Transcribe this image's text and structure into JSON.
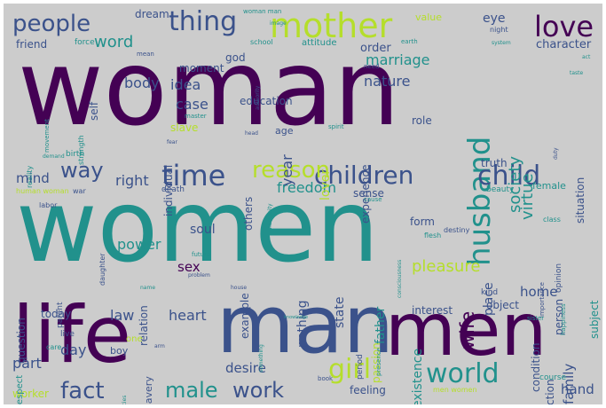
{
  "palette": {
    "background": "#cccccc",
    "purple": "#440154",
    "indigo": "#3b528b",
    "teal": "#21918c",
    "green": "#5ec962",
    "lime": "#b5de2b",
    "yellow": "#fde725",
    "slate": "#31688e"
  },
  "words": [
    {
      "text": "woman",
      "weight": 100
    },
    {
      "text": "women",
      "weight": 98
    },
    {
      "text": "life",
      "weight": 62
    },
    {
      "text": "man",
      "weight": 60
    },
    {
      "text": "men",
      "weight": 52
    },
    {
      "text": "mother",
      "weight": 34
    },
    {
      "text": "husband",
      "weight": 30
    },
    {
      "text": "love",
      "weight": 28
    },
    {
      "text": "thing",
      "weight": 26
    },
    {
      "text": "people",
      "weight": 24
    },
    {
      "text": "time",
      "weight": 26
    },
    {
      "text": "children",
      "weight": 26
    },
    {
      "text": "child",
      "weight": 26
    },
    {
      "text": "reason",
      "weight": 24
    },
    {
      "text": "world",
      "weight": 26
    },
    {
      "text": "girl",
      "weight": 28
    },
    {
      "text": "male",
      "weight": 22
    },
    {
      "text": "work",
      "weight": 22
    },
    {
      "text": "fact",
      "weight": 22
    },
    {
      "text": "way",
      "weight": 20
    },
    {
      "text": "wife",
      "weight": 18
    },
    {
      "text": "word",
      "weight": 16
    },
    {
      "text": "body",
      "weight": 15
    },
    {
      "text": "idea",
      "weight": 15
    },
    {
      "text": "case",
      "weight": 15
    },
    {
      "text": "nature",
      "weight": 16
    },
    {
      "text": "marriage",
      "weight": 15
    },
    {
      "text": "society",
      "weight": 15
    },
    {
      "text": "virtue",
      "weight": 15
    },
    {
      "text": "freedom",
      "weight": 15
    },
    {
      "text": "right",
      "weight": 15
    },
    {
      "text": "mind",
      "weight": 14
    },
    {
      "text": "lover",
      "weight": 13
    },
    {
      "text": "year",
      "weight": 14
    },
    {
      "text": "pleasure",
      "weight": 16
    },
    {
      "text": "power",
      "weight": 15
    },
    {
      "text": "law",
      "weight": 15
    },
    {
      "text": "heart",
      "weight": 15
    },
    {
      "text": "day",
      "weight": 15
    },
    {
      "text": "part",
      "weight": 15
    },
    {
      "text": "desire",
      "weight": 14
    },
    {
      "text": "home",
      "weight": 15
    },
    {
      "text": "family",
      "weight": 15
    },
    {
      "text": "hand",
      "weight": 15
    },
    {
      "text": "sex",
      "weight": 15
    },
    {
      "text": "soul",
      "weight": 14
    },
    {
      "text": "state",
      "weight": 14
    },
    {
      "text": "place",
      "weight": 14
    },
    {
      "text": "father",
      "weight": 14
    },
    {
      "text": "existence",
      "weight": 14
    },
    {
      "text": "nothing",
      "weight": 14
    },
    {
      "text": "eye",
      "weight": 14
    },
    {
      "text": "character",
      "weight": 13
    },
    {
      "text": "order",
      "weight": 13
    },
    {
      "text": "god",
      "weight": 12
    },
    {
      "text": "moment",
      "weight": 12
    },
    {
      "text": "friend",
      "weight": 12
    },
    {
      "text": "self",
      "weight": 12
    },
    {
      "text": "dream",
      "weight": 12
    },
    {
      "text": "value",
      "weight": 11
    },
    {
      "text": "education",
      "weight": 12
    },
    {
      "text": "slave",
      "weight": 12
    },
    {
      "text": "others",
      "weight": 12
    },
    {
      "text": "role",
      "weight": 12
    },
    {
      "text": "experience",
      "weight": 12
    },
    {
      "text": "individual",
      "weight": 12
    },
    {
      "text": "truth",
      "weight": 12
    },
    {
      "text": "female",
      "weight": 11
    },
    {
      "text": "situation",
      "weight": 12
    },
    {
      "text": "sense",
      "weight": 12
    },
    {
      "text": "age",
      "weight": 11
    },
    {
      "text": "form",
      "weight": 12
    },
    {
      "text": "person",
      "weight": 12
    },
    {
      "text": "relation",
      "weight": 12
    },
    {
      "text": "example",
      "weight": 12
    },
    {
      "text": "question",
      "weight": 12
    },
    {
      "text": "today",
      "weight": 12
    },
    {
      "text": "interest",
      "weight": 12
    },
    {
      "text": "object",
      "weight": 12
    },
    {
      "text": "passion",
      "weight": 12
    },
    {
      "text": "condition",
      "weight": 12
    },
    {
      "text": "affection",
      "weight": 12
    },
    {
      "text": "subject",
      "weight": 12
    },
    {
      "text": "feeling",
      "weight": 12
    },
    {
      "text": "worker",
      "weight": 12
    },
    {
      "text": "boy",
      "weight": 11
    },
    {
      "text": "live",
      "weight": 9
    },
    {
      "text": "respect",
      "weight": 10
    },
    {
      "text": "slavery",
      "weight": 11
    },
    {
      "text": "birth",
      "weight": 9
    },
    {
      "text": "strength",
      "weight": 8
    },
    {
      "text": "movement",
      "weight": 7
    },
    {
      "text": "death",
      "weight": 9
    },
    {
      "text": "labor",
      "weight": 8
    },
    {
      "text": "daughter",
      "weight": 8
    },
    {
      "text": "beauty",
      "weight": 9
    },
    {
      "text": "opinion",
      "weight": 9
    },
    {
      "text": "happiness",
      "weight": 7
    },
    {
      "text": "importance",
      "weight": 7
    },
    {
      "text": "class",
      "weight": 8
    },
    {
      "text": "destiny",
      "weight": 8
    },
    {
      "text": "kind",
      "weight": 9
    },
    {
      "text": "course",
      "weight": 9
    },
    {
      "text": "sister",
      "weight": 7
    },
    {
      "text": "book",
      "weight": 7
    },
    {
      "text": "period",
      "weight": 9
    },
    {
      "text": "men women",
      "weight": 8
    },
    {
      "text": "woman man",
      "weight": 7
    },
    {
      "text": "human woman",
      "weight": 8
    },
    {
      "text": "war",
      "weight": 8
    },
    {
      "text": "mean",
      "weight": 7
    },
    {
      "text": "master",
      "weight": 7
    },
    {
      "text": "school",
      "weight": 8
    },
    {
      "text": "attitude",
      "weight": 10
    },
    {
      "text": "force",
      "weight": 9
    },
    {
      "text": "earth",
      "weight": 7
    },
    {
      "text": "night",
      "weight": 8
    },
    {
      "text": "system",
      "weight": 6
    },
    {
      "text": "need",
      "weight": 7
    },
    {
      "text": "image",
      "weight": 6
    },
    {
      "text": "authority",
      "weight": 6
    },
    {
      "text": "act",
      "weight": 6
    },
    {
      "text": "taste",
      "weight": 6
    },
    {
      "text": "duty",
      "weight": 6
    },
    {
      "text": "spirit",
      "weight": 7
    },
    {
      "text": "head",
      "weight": 6
    },
    {
      "text": "reality",
      "weight": 8
    },
    {
      "text": "demand",
      "weight": 6
    },
    {
      "text": "fear",
      "weight": 6
    },
    {
      "text": "future",
      "weight": 7
    },
    {
      "text": "problem",
      "weight": 6
    },
    {
      "text": "humanity",
      "weight": 6
    },
    {
      "text": "flesh",
      "weight": 8
    },
    {
      "text": "cause",
      "weight": 7
    },
    {
      "text": "name",
      "weight": 6
    },
    {
      "text": "house",
      "weight": 6
    },
    {
      "text": "parent",
      "weight": 9
    },
    {
      "text": "knowledge",
      "weight": 5
    },
    {
      "text": "care",
      "weight": 8
    },
    {
      "text": "something",
      "weight": 6
    },
    {
      "text": "presence",
      "weight": 7
    },
    {
      "text": "consciousness",
      "weight": 6
    },
    {
      "text": "species",
      "weight": 6
    },
    {
      "text": "arm",
      "weight": 6
    },
    {
      "text": "one",
      "weight": 10
    }
  ]
}
